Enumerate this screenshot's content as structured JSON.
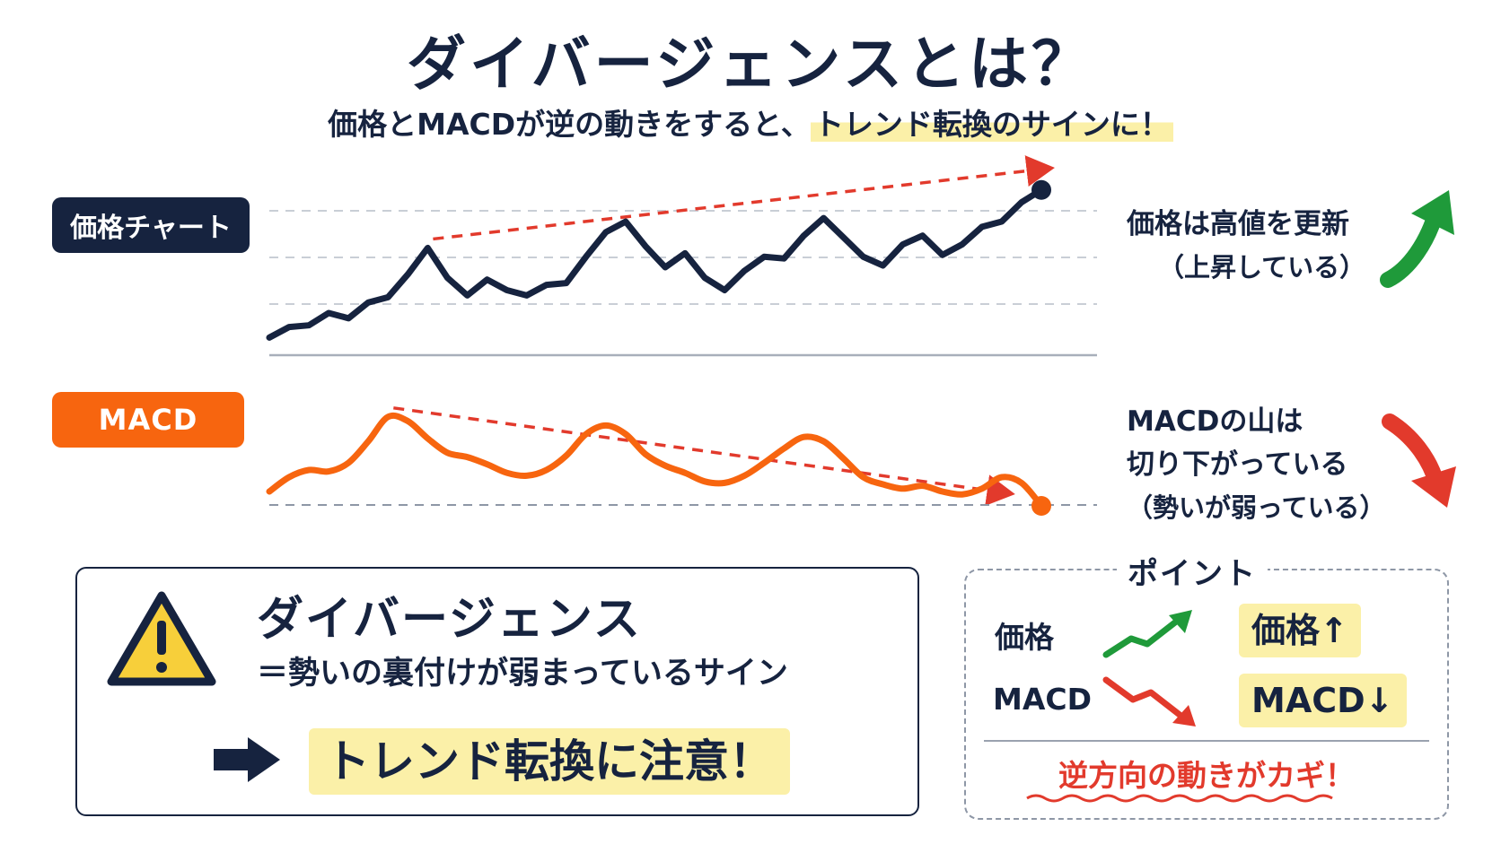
{
  "title": "ダイバージェンスとは？",
  "subtitle": {
    "main": "価格とMACDが逆の動きをすると、",
    "highlight": "トレンド転換のサインに！"
  },
  "colors": {
    "navy": "#16233f",
    "orange": "#f7650f",
    "red": "#e23a2c",
    "green": "#1f9a3a",
    "highlight": "#fbf0a8"
  },
  "price_panel": {
    "label": "価格チャート",
    "note_line1": "価格は高値を更新",
    "note_line2": "（上昇している）",
    "arrow_icon": "green-up-arrow-icon"
  },
  "macd_panel": {
    "label": "MACD",
    "note_line1": "MACDの山は",
    "note_line2": "切り下がっている",
    "note_line3": "（勢いが弱っている）",
    "arrow_icon": "red-down-arrow-icon"
  },
  "chart_data": [
    {
      "type": "line",
      "title": "",
      "xlabel": "",
      "ylabel": "",
      "grid": true,
      "x": [
        0,
        1,
        2,
        3,
        4,
        5,
        6,
        7,
        8,
        9,
        10,
        11,
        12,
        13,
        14,
        15,
        16,
        17,
        18,
        19,
        20,
        21,
        22,
        23,
        24,
        25,
        26,
        27,
        28,
        29,
        30,
        31,
        32,
        33,
        34,
        35,
        36,
        37,
        38,
        39
      ],
      "series": [
        {
          "values": [
            10,
            16,
            17,
            24,
            21,
            30,
            33,
            46,
            61,
            44,
            34,
            43,
            37,
            34,
            40,
            41,
            56,
            70,
            76,
            62,
            50,
            58,
            44,
            37,
            48,
            56,
            55,
            68,
            78,
            67,
            56,
            51,
            63,
            68,
            57,
            63,
            73,
            76,
            87,
            94
          ]
        }
      ],
      "ylim": [
        0,
        100
      ],
      "trend": "higher highs",
      "peaks_index": [
        8,
        17,
        27,
        39
      ]
    },
    {
      "type": "line",
      "title": "",
      "xlabel": "",
      "ylabel": "",
      "grid": false,
      "x": [
        0,
        1,
        2,
        3,
        4,
        5,
        6,
        7,
        8,
        9,
        10,
        11,
        12,
        13,
        14,
        15,
        16,
        17,
        18,
        19,
        20,
        21,
        22,
        23,
        24,
        25,
        26,
        27,
        28,
        29,
        30,
        31,
        32,
        33,
        34,
        35,
        36,
        37,
        38,
        39
      ],
      "series": [
        {
          "values": [
            20,
            30,
            35,
            34,
            40,
            55,
            72,
            69,
            57,
            47,
            44,
            39,
            33,
            31,
            35,
            45,
            60,
            66,
            60,
            46,
            38,
            33,
            27,
            26,
            31,
            40,
            50,
            58,
            55,
            43,
            30,
            25,
            22,
            24,
            20,
            18,
            22,
            30,
            26,
            10
          ]
        }
      ],
      "ylim": [
        0,
        100
      ],
      "trend": "lower highs",
      "peaks_index": [
        6,
        17,
        27,
        37
      ]
    }
  ],
  "warning_box": {
    "icon": "warning-icon",
    "title": "ダイバージェンス",
    "subtitle": "＝勢いの裏付けが弱まっているサイン",
    "arrow_icon": "right-arrow-icon",
    "highlight": "トレンド転換に注意！"
  },
  "point_box": {
    "title": "ポイント",
    "price_label": "価格",
    "macd_label": "MACD",
    "price_tag": "価格↑",
    "macd_tag": "MACD↓",
    "key_text": "逆方向の動きがカギ！"
  }
}
